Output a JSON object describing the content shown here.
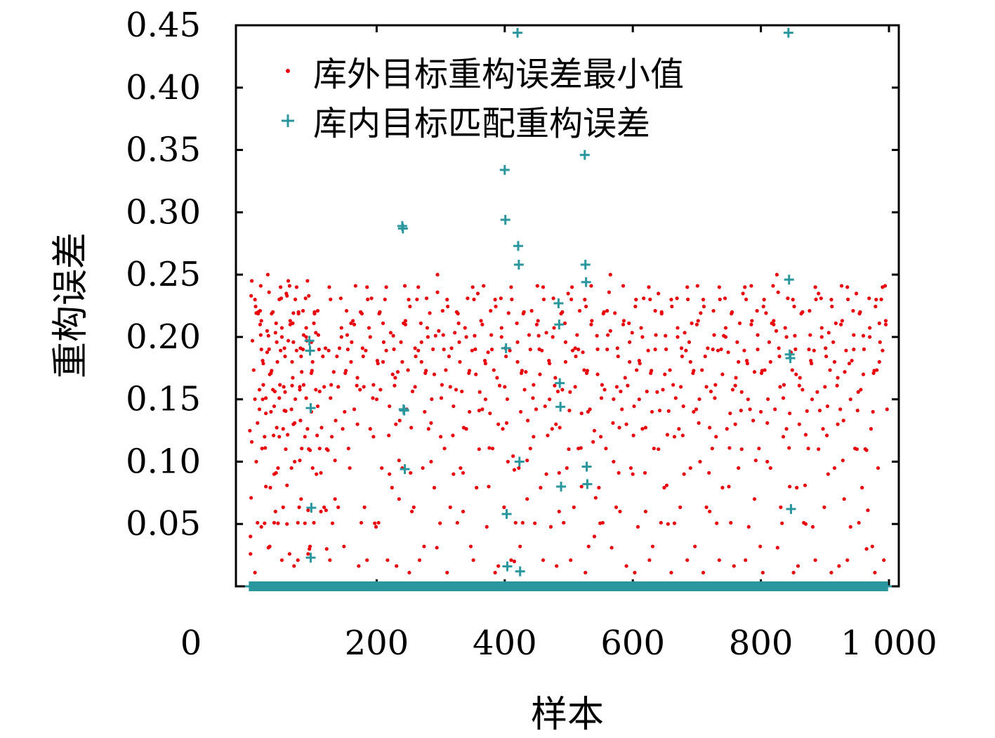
{
  "chart_data": {
    "type": "scatter",
    "xlabel": "样本",
    "ylabel": "重构误差",
    "xlim": [
      0,
      1000
    ],
    "ylim": [
      0,
      0.45
    ],
    "x_ticks": [
      "0",
      "200",
      "400",
      "600",
      "800",
      "1 000"
    ],
    "y_ticks": [
      "0.05",
      "0.10",
      "0.15",
      "0.20",
      "0.25",
      "0.30",
      "0.35",
      "0.40",
      "0.45"
    ],
    "legend_position": "top-right",
    "grid": false,
    "series": [
      {
        "name": "库外目标重构误差最小值",
        "marker": "dot",
        "color": "#e8000b",
        "description_range": [
          0,
          0.25
        ],
        "points": [
          [
            3,
            0.04
          ],
          [
            5,
            0.245
          ],
          [
            10,
            0.23
          ],
          [
            12,
            0.1
          ],
          [
            15,
            0.22
          ],
          [
            18,
            0.21
          ],
          [
            20,
            0.19
          ],
          [
            22,
            0.15
          ],
          [
            25,
            0.12
          ],
          [
            27,
            0.08
          ],
          [
            30,
            0.25
          ],
          [
            33,
            0.17
          ],
          [
            35,
            0.14
          ],
          [
            38,
            0.22
          ],
          [
            40,
            0.09
          ],
          [
            42,
            0.06
          ],
          [
            45,
            0.18
          ],
          [
            48,
            0.12
          ],
          [
            50,
            0.24
          ],
          [
            52,
            0.2
          ],
          [
            55,
            0.16
          ],
          [
            58,
            0.11
          ],
          [
            60,
            0.05
          ],
          [
            62,
            0.245
          ],
          [
            65,
            0.21
          ],
          [
            68,
            0.18
          ],
          [
            70,
            0.13
          ],
          [
            72,
            0.1
          ],
          [
            75,
            0.24
          ],
          [
            78,
            0.22
          ],
          [
            80,
            0.16
          ],
          [
            82,
            0.07
          ],
          [
            85,
            0.19
          ],
          [
            88,
            0.12
          ],
          [
            90,
            0.2
          ],
          [
            92,
            0.245
          ],
          [
            95,
            0.03
          ],
          [
            98,
            0.14
          ],
          [
            100,
            0.18
          ],
          [
            103,
            0.22
          ],
          [
            106,
            0.09
          ],
          [
            110,
            0.19
          ],
          [
            113,
            0.06
          ],
          [
            118,
            0.16
          ],
          [
            122,
            0.03
          ],
          [
            126,
            0.24
          ],
          [
            130,
            0.12
          ],
          [
            135,
            0.07
          ],
          [
            140,
            0.16
          ],
          [
            145,
            0.2
          ],
          [
            150,
            0.14
          ],
          [
            155,
            0.19
          ],
          [
            160,
            0.18
          ],
          [
            165,
            0.21
          ],
          [
            170,
            0.13
          ],
          [
            175,
            0.22
          ],
          [
            180,
            0.16
          ],
          [
            185,
            0.24
          ],
          [
            190,
            0.2
          ],
          [
            195,
            0.12
          ],
          [
            200,
            0.15
          ],
          [
            205,
            0.22
          ],
          [
            210,
            0.18
          ],
          [
            215,
            0.24
          ],
          [
            220,
            0.09
          ],
          [
            225,
            0.17
          ],
          [
            230,
            0.13
          ],
          [
            235,
            0.07
          ],
          [
            240,
            0.18
          ],
          [
            245,
            0.21
          ],
          [
            250,
            0.23
          ],
          [
            255,
            0.06
          ],
          [
            260,
            0.16
          ],
          [
            265,
            0.24
          ],
          [
            270,
            0.18
          ],
          [
            275,
            0.14
          ],
          [
            280,
            0.2
          ],
          [
            285,
            0.1
          ],
          [
            290,
            0.17
          ],
          [
            295,
            0.25
          ],
          [
            300,
            0.12
          ],
          [
            305,
            0.19
          ],
          [
            310,
            0.23
          ],
          [
            315,
            0.16
          ],
          [
            320,
            0.09
          ],
          [
            325,
            0.22
          ],
          [
            330,
            0.18
          ],
          [
            335,
            0.06
          ],
          [
            340,
            0.2
          ],
          [
            345,
            0.14
          ],
          [
            350,
            0.24
          ],
          [
            355,
            0.17
          ],
          [
            360,
            0.11
          ],
          [
            365,
            0.21
          ],
          [
            370,
            0.15
          ],
          [
            375,
            0.08
          ],
          [
            380,
            0.19
          ],
          [
            385,
            0.23
          ],
          [
            390,
            0.13
          ],
          [
            395,
            0.2
          ],
          [
            400,
            0.16
          ],
          [
            405,
            0.1
          ],
          [
            410,
            0.24
          ],
          [
            415,
            0.02
          ],
          [
            420,
            0.18
          ],
          [
            425,
            0.14
          ],
          [
            430,
            0.22
          ],
          [
            435,
            0.07
          ],
          [
            440,
            0.19
          ],
          [
            445,
            0.12
          ],
          [
            450,
            0.21
          ],
          [
            455,
            0.17
          ],
          [
            460,
            0.24
          ],
          [
            465,
            0.09
          ],
          [
            470,
            0.15
          ],
          [
            475,
            0.2
          ],
          [
            480,
            0.13
          ],
          [
            485,
            0.06
          ],
          [
            490,
            0.22
          ],
          [
            495,
            0.18
          ],
          [
            500,
            0.11
          ],
          [
            505,
            0.24
          ],
          [
            510,
            0.16
          ],
          [
            515,
            0.19
          ],
          [
            520,
            0.08
          ],
          [
            525,
            0.23
          ],
          [
            530,
            0.14
          ],
          [
            535,
            0.21
          ],
          [
            540,
            0.04
          ],
          [
            545,
            0.17
          ],
          [
            550,
            0.12
          ],
          [
            555,
            0.22
          ],
          [
            560,
            0.19
          ],
          [
            565,
            0.25
          ],
          [
            570,
            0.1
          ],
          [
            575,
            0.16
          ],
          [
            580,
            0.06
          ],
          [
            585,
            0.21
          ],
          [
            590,
            0.13
          ],
          [
            595,
            0.18
          ],
          [
            600,
            0.09
          ],
          [
            605,
            0.23
          ],
          [
            610,
            0.15
          ],
          [
            615,
            0.2
          ],
          [
            620,
            0.06
          ],
          [
            625,
            0.24
          ],
          [
            630,
            0.14
          ],
          [
            635,
            0.19
          ],
          [
            640,
            0.11
          ],
          [
            645,
            0.22
          ],
          [
            650,
            0.17
          ],
          [
            655,
            0.05
          ],
          [
            660,
            0.23
          ],
          [
            665,
            0.12
          ],
          [
            670,
            0.2
          ],
          [
            675,
            0.16
          ],
          [
            680,
            0.09
          ],
          [
            685,
            0.24
          ],
          [
            690,
            0.18
          ],
          [
            695,
            0.14
          ],
          [
            700,
            0.21
          ],
          [
            705,
            0.1
          ],
          [
            710,
            0.23
          ],
          [
            715,
            0.16
          ],
          [
            720,
            0.06
          ],
          [
            725,
            0.19
          ],
          [
            730,
            0.12
          ],
          [
            735,
            0.24
          ],
          [
            740,
            0.17
          ],
          [
            745,
            0.2
          ],
          [
            750,
            0.08
          ],
          [
            755,
            0.22
          ],
          [
            760,
            0.13
          ],
          [
            765,
            0.18
          ],
          [
            770,
            0.11
          ],
          [
            775,
            0.24
          ],
          [
            780,
            0.15
          ],
          [
            785,
            0.21
          ],
          [
            790,
            0.07
          ],
          [
            795,
            0.19
          ],
          [
            800,
            0.14
          ],
          [
            805,
            0.23
          ],
          [
            810,
            0.1
          ],
          [
            815,
            0.18
          ],
          [
            820,
            0.21
          ],
          [
            825,
            0.25
          ],
          [
            830,
            0.16
          ],
          [
            835,
            0.12
          ],
          [
            840,
            0.2
          ],
          [
            845,
            0.08
          ],
          [
            850,
            0.23
          ],
          [
            855,
            0.17
          ],
          [
            860,
            0.13
          ],
          [
            865,
            0.22
          ],
          [
            870,
            0.05
          ],
          [
            875,
            0.19
          ],
          [
            880,
            0.15
          ],
          [
            885,
            0.24
          ],
          [
            890,
            0.11
          ],
          [
            895,
            0.2
          ],
          [
            900,
            0.16
          ],
          [
            905,
            0.09
          ],
          [
            910,
            0.23
          ],
          [
            915,
            0.18
          ],
          [
            920,
            0.13
          ],
          [
            925,
            0.21
          ],
          [
            930,
            0.07
          ],
          [
            935,
            0.24
          ],
          [
            940,
            0.15
          ],
          [
            945,
            0.19
          ],
          [
            950,
            0.11
          ],
          [
            955,
            0.22
          ],
          [
            960,
            0.17
          ],
          [
            965,
            0.03
          ],
          [
            970,
            0.2
          ],
          [
            975,
            0.14
          ],
          [
            980,
            0.23
          ],
          [
            985,
            0.18
          ],
          [
            990,
            0.24
          ],
          [
            995,
            0.21
          ]
        ]
      },
      {
        "name": "库内目标匹配重构误差",
        "marker": "plus",
        "color": "#2a979e",
        "baseline_value": 0.0,
        "outliers": [
          [
            95,
            0.197
          ],
          [
            96,
            0.189
          ],
          [
            97,
            0.143
          ],
          [
            98,
            0.063
          ],
          [
            97,
            0.023
          ],
          [
            240,
            0.289
          ],
          [
            241,
            0.287
          ],
          [
            242,
            0.142
          ],
          [
            243,
            0.141
          ],
          [
            244,
            0.094
          ],
          [
            400,
            0.334
          ],
          [
            401,
            0.294
          ],
          [
            402,
            0.191
          ],
          [
            403,
            0.058
          ],
          [
            404,
            0.016
          ],
          [
            420,
            0.444
          ],
          [
            421,
            0.273
          ],
          [
            422,
            0.258
          ],
          [
            423,
            0.1
          ],
          [
            424,
            0.012
          ],
          [
            484,
            0.227
          ],
          [
            485,
            0.21
          ],
          [
            486,
            0.163
          ],
          [
            487,
            0.144
          ],
          [
            488,
            0.08
          ],
          [
            525,
            0.346
          ],
          [
            526,
            0.258
          ],
          [
            527,
            0.244
          ],
          [
            528,
            0.096
          ],
          [
            529,
            0.082
          ],
          [
            843,
            0.444
          ],
          [
            844,
            0.246
          ],
          [
            845,
            0.186
          ],
          [
            846,
            0.183
          ],
          [
            847,
            0.062
          ]
        ]
      }
    ]
  }
}
